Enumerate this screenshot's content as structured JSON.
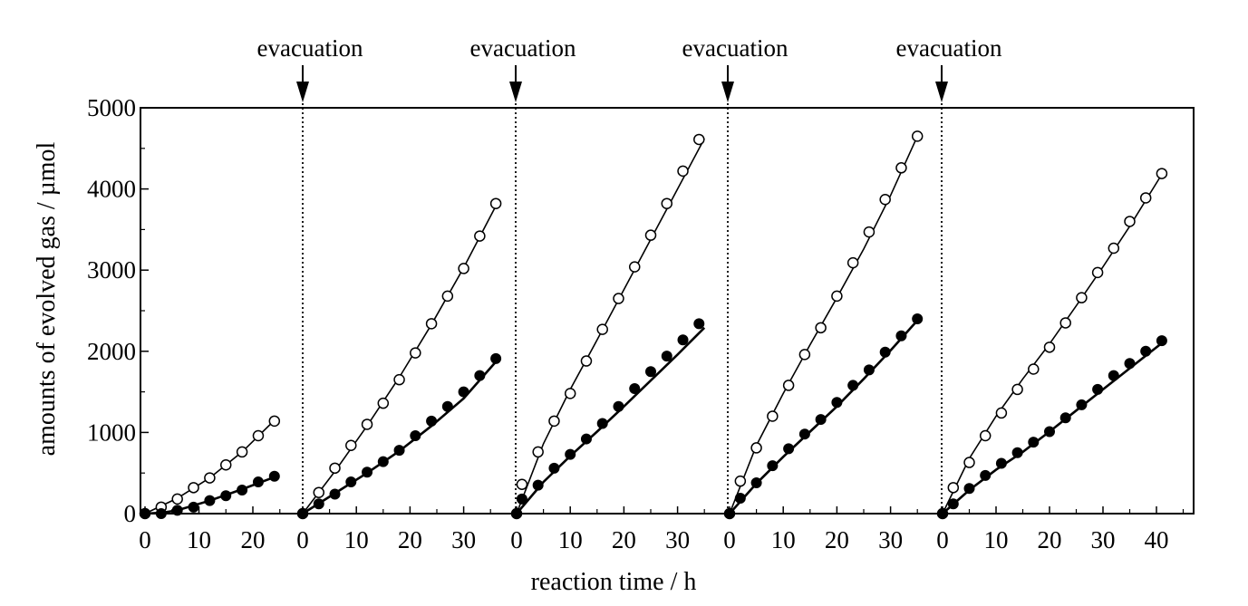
{
  "chart_data": {
    "type": "scatter",
    "xlabel": "reaction time / h",
    "ylabel": "amounts of evolved gas / µmol",
    "ylim": [
      0,
      5000
    ],
    "y_ticks": [
      "0",
      "1000",
      "2000",
      "3000",
      "4000",
      "5000"
    ],
    "annotation": "evacuation",
    "colors": {
      "axis": "#000000",
      "open_marker_fill": "#ffffff",
      "filled_marker": "#000000"
    },
    "runs": [
      {
        "x_ticks": [
          "0",
          "10",
          "20"
        ],
        "open_points": {
          "x": [
            0,
            3,
            6,
            9,
            12,
            15,
            18,
            21,
            24
          ],
          "y": [
            0,
            80,
            180,
            320,
            440,
            600,
            760,
            960,
            1140
          ]
        },
        "filled_points": {
          "x": [
            0,
            3,
            6,
            9,
            12,
            15,
            18,
            21,
            24
          ],
          "y": [
            0,
            0,
            40,
            80,
            160,
            220,
            290,
            390,
            460
          ]
        },
        "open_fit": {
          "x": [
            0,
            6,
            12,
            18,
            24
          ],
          "y": [
            0,
            190,
            440,
            760,
            1150
          ]
        },
        "filled_fit": {
          "x": [
            0,
            3,
            6,
            12,
            18,
            24
          ],
          "y": [
            0,
            10,
            40,
            160,
            300,
            450
          ]
        }
      },
      {
        "x_ticks": [
          "0",
          "10",
          "20",
          "30"
        ],
        "open_points": {
          "x": [
            0,
            3,
            6,
            9,
            12,
            15,
            18,
            21,
            24,
            27,
            30,
            33,
            36
          ],
          "y": [
            0,
            260,
            560,
            840,
            1100,
            1360,
            1650,
            1980,
            2340,
            2680,
            3020,
            3420,
            3820
          ]
        },
        "filled_points": {
          "x": [
            0,
            3,
            6,
            9,
            12,
            15,
            18,
            21,
            24,
            27,
            30,
            33,
            36
          ],
          "y": [
            0,
            120,
            240,
            390,
            510,
            640,
            780,
            960,
            1140,
            1320,
            1500,
            1700,
            1910
          ]
        },
        "open_fit": {
          "x": [
            0,
            6,
            12,
            18,
            24,
            30,
            36
          ],
          "y": [
            0,
            520,
            1080,
            1680,
            2330,
            3030,
            3790
          ]
        },
        "filled_fit": {
          "x": [
            0,
            6,
            12,
            18,
            24,
            30,
            36
          ],
          "y": [
            0,
            250,
            500,
            770,
            1080,
            1420,
            1870
          ]
        }
      },
      {
        "x_ticks": [
          "0",
          "10",
          "20",
          "30"
        ],
        "open_points": {
          "x": [
            0,
            1,
            4,
            7,
            10,
            13,
            16,
            19,
            22,
            25,
            28,
            31,
            34
          ],
          "y": [
            0,
            360,
            760,
            1140,
            1480,
            1880,
            2270,
            2650,
            3040,
            3430,
            3820,
            4220,
            4610
          ]
        },
        "filled_points": {
          "x": [
            0,
            1,
            4,
            7,
            10,
            13,
            16,
            19,
            22,
            25,
            28,
            31,
            34
          ],
          "y": [
            0,
            180,
            350,
            560,
            730,
            920,
            1110,
            1320,
            1540,
            1750,
            1940,
            2140,
            2340
          ]
        },
        "open_fit": {
          "x": [
            0,
            5,
            10,
            15,
            20,
            25,
            30,
            35
          ],
          "y": [
            0,
            860,
            1530,
            2140,
            2760,
            3380,
            4000,
            4620
          ]
        },
        "filled_fit": {
          "x": [
            0,
            5,
            10,
            15,
            20,
            25,
            30,
            35
          ],
          "y": [
            0,
            390,
            710,
            1010,
            1320,
            1640,
            1960,
            2290
          ]
        }
      },
      {
        "x_ticks": [
          "0",
          "10",
          "20",
          "30"
        ],
        "open_points": {
          "x": [
            0,
            2,
            5,
            8,
            11,
            14,
            17,
            20,
            23,
            26,
            29,
            32,
            35
          ],
          "y": [
            0,
            400,
            810,
            1200,
            1580,
            1960,
            2290,
            2680,
            3090,
            3470,
            3870,
            4260,
            4650
          ]
        },
        "filled_points": {
          "x": [
            0,
            2,
            5,
            8,
            11,
            14,
            17,
            20,
            23,
            26,
            29,
            32,
            35
          ],
          "y": [
            0,
            190,
            380,
            590,
            800,
            980,
            1160,
            1370,
            1580,
            1770,
            1990,
            2190,
            2400
          ]
        },
        "open_fit": {
          "x": [
            0,
            5,
            10,
            15,
            20,
            25,
            30,
            35
          ],
          "y": [
            0,
            840,
            1480,
            2080,
            2660,
            3260,
            3920,
            4650
          ]
        },
        "filled_fit": {
          "x": [
            0,
            5,
            10,
            15,
            20,
            25,
            30,
            35
          ],
          "y": [
            0,
            370,
            700,
            1010,
            1320,
            1660,
            2010,
            2380
          ]
        }
      },
      {
        "x_ticks": [
          "0",
          "10",
          "20",
          "30",
          "40"
        ],
        "open_points": {
          "x": [
            0,
            2,
            5,
            8,
            11,
            14,
            17,
            20,
            23,
            26,
            29,
            32,
            35,
            38,
            41
          ],
          "y": [
            0,
            320,
            630,
            960,
            1240,
            1530,
            1780,
            2050,
            2350,
            2660,
            2970,
            3270,
            3600,
            3890,
            4190
          ]
        },
        "filled_points": {
          "x": [
            0,
            2,
            5,
            8,
            11,
            14,
            17,
            20,
            23,
            26,
            29,
            32,
            35,
            38,
            41
          ],
          "y": [
            0,
            120,
            310,
            470,
            620,
            750,
            880,
            1010,
            1180,
            1340,
            1530,
            1700,
            1850,
            2000,
            2130
          ]
        },
        "open_fit": {
          "x": [
            0,
            5,
            10,
            15,
            20,
            25,
            30,
            35,
            41
          ],
          "y": [
            0,
            680,
            1200,
            1660,
            2090,
            2560,
            3040,
            3540,
            4180
          ]
        },
        "filled_fit": {
          "x": [
            0,
            5,
            10,
            15,
            20,
            25,
            30,
            35,
            41
          ],
          "y": [
            0,
            290,
            540,
            760,
            1010,
            1270,
            1530,
            1790,
            2100
          ]
        }
      }
    ]
  }
}
